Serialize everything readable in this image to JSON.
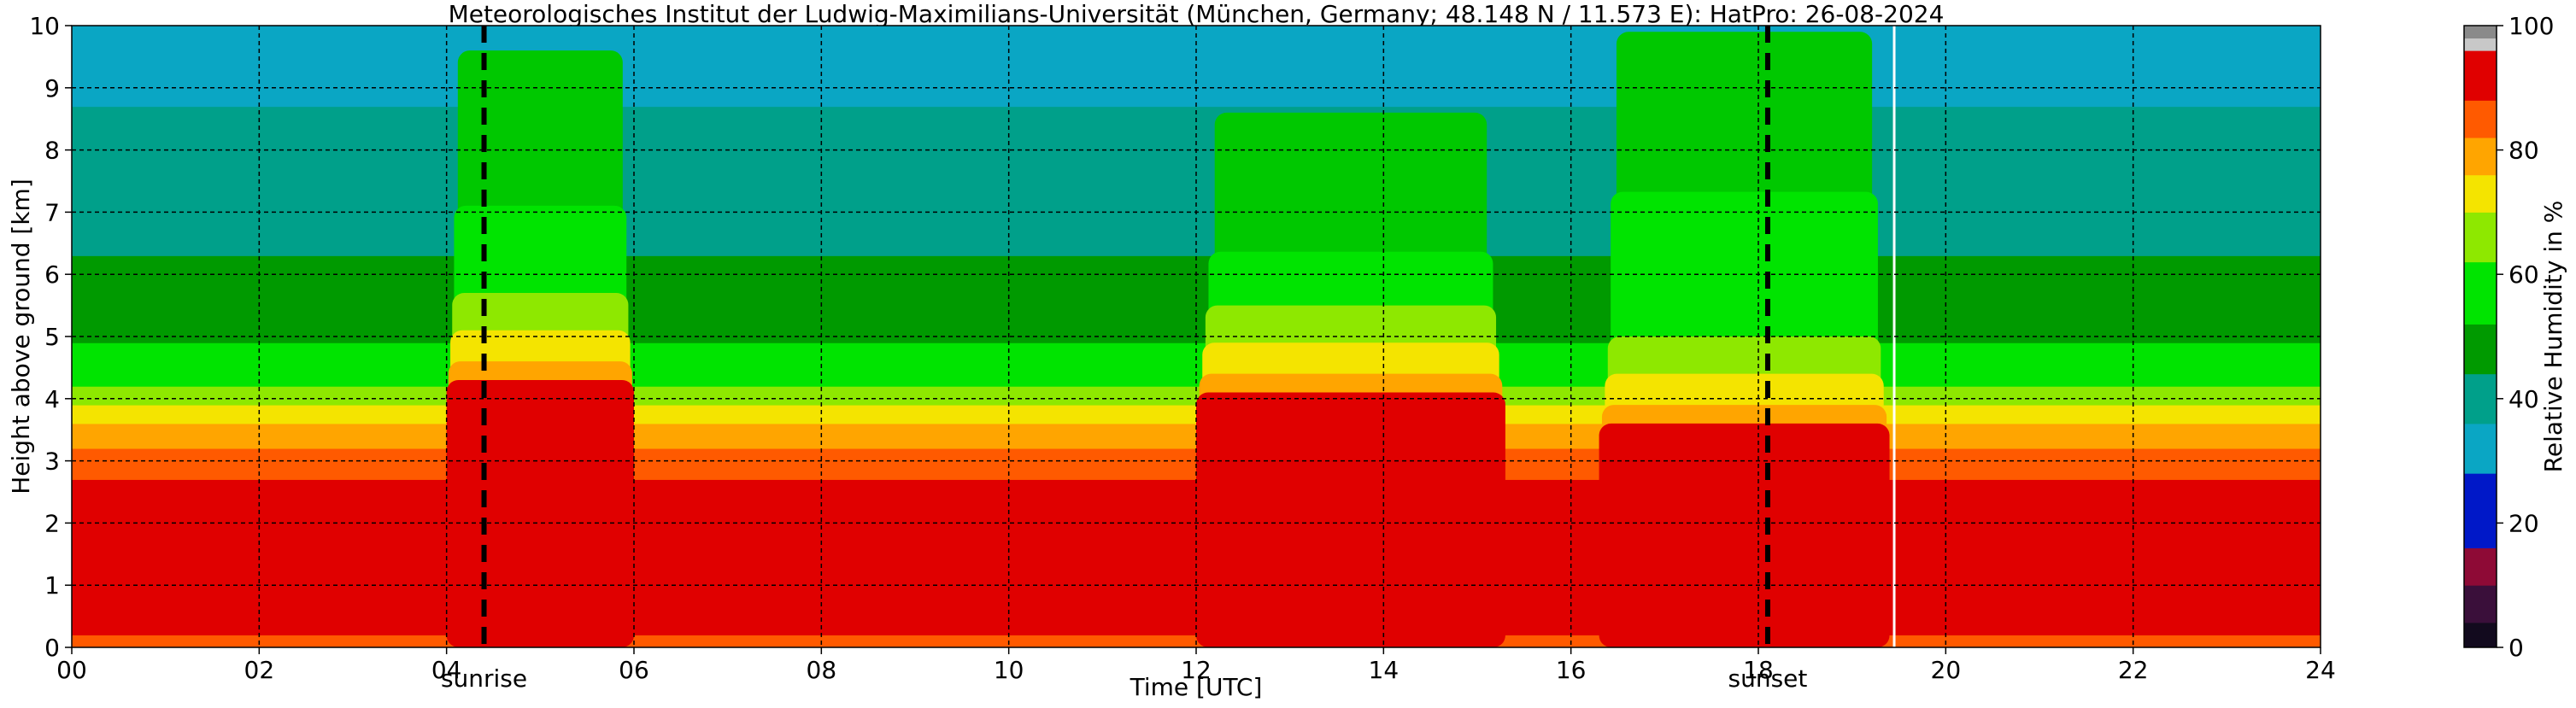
{
  "chart_data": {
    "type": "heatmap",
    "title": "Meteorologisches Institut der Ludwig-Maximilians-Universität (München, Germany; 48.148 N / 11.573 E):    HatPro: 26-08-2024",
    "xlabel": "Time [UTC]",
    "ylabel": "Height above ground [km]",
    "xlim": [
      0,
      24
    ],
    "ylim": [
      0,
      10
    ],
    "x_ticks": [
      "00",
      "02",
      "04",
      "06",
      "08",
      "10",
      "12",
      "14",
      "16",
      "18",
      "20",
      "22",
      "24"
    ],
    "y_ticks": [
      "0",
      "1",
      "2",
      "3",
      "4",
      "5",
      "6",
      "7",
      "8",
      "9",
      "10"
    ],
    "grid": true,
    "colorbar": {
      "label": "Relative Humidity in %",
      "ticks": [
        "0",
        "20",
        "40",
        "60",
        "80",
        "100"
      ],
      "range": [
        0,
        100
      ],
      "stops": [
        {
          "from": 0,
          "to": 4,
          "color": "#120a1e"
        },
        {
          "from": 4,
          "to": 10,
          "color": "#3a0f3a"
        },
        {
          "from": 10,
          "to": 16,
          "color": "#8e0a36"
        },
        {
          "from": 16,
          "to": 28,
          "color": "#0018c8"
        },
        {
          "from": 28,
          "to": 36,
          "color": "#0aa6c4"
        },
        {
          "from": 36,
          "to": 44,
          "color": "#00a08a"
        },
        {
          "from": 44,
          "to": 52,
          "color": "#009a00"
        },
        {
          "from": 52,
          "to": 62,
          "color": "#00e400"
        },
        {
          "from": 62,
          "to": 70,
          "color": "#8ee800"
        },
        {
          "from": 70,
          "to": 76,
          "color": "#f4e400"
        },
        {
          "from": 76,
          "to": 82,
          "color": "#ffa500"
        },
        {
          "from": 82,
          "to": 88,
          "color": "#ff5a00"
        },
        {
          "from": 88,
          "to": 96,
          "color": "#e00000"
        },
        {
          "from": 96,
          "to": 98,
          "color": "#c8c8c8"
        },
        {
          "from": 98,
          "to": 100,
          "color": "#8a8a8a"
        }
      ]
    },
    "background_profile_rh": [
      {
        "h": 0.0,
        "rh": 82
      },
      {
        "h": 0.25,
        "rh": 90
      },
      {
        "h": 2.6,
        "rh": 90
      },
      {
        "h": 3.0,
        "rh": 84
      },
      {
        "h": 3.5,
        "rh": 78
      },
      {
        "h": 4.1,
        "rh": 66
      },
      {
        "h": 4.4,
        "rh": 58
      },
      {
        "h": 5.0,
        "rh": 50
      },
      {
        "h": 6.3,
        "rh": 44
      },
      {
        "h": 8.0,
        "rh": 38
      },
      {
        "h": 10.0,
        "rh": 32
      }
    ],
    "moist_episodes": [
      {
        "start": 4.0,
        "end": 6.0,
        "top_km": 9.6,
        "saturated_top_km": 4.3
      },
      {
        "start": 12.0,
        "end": 15.3,
        "top_km": 8.6,
        "saturated_top_km": 4.1
      },
      {
        "start": 16.3,
        "end": 19.4,
        "top_km": 9.9,
        "saturated_top_km": 3.6
      }
    ],
    "missing_data_at": 19.45,
    "sunrise": {
      "time": 4.4,
      "label": "sunrise"
    },
    "sunset": {
      "time": 18.1,
      "label": "sunset"
    }
  }
}
